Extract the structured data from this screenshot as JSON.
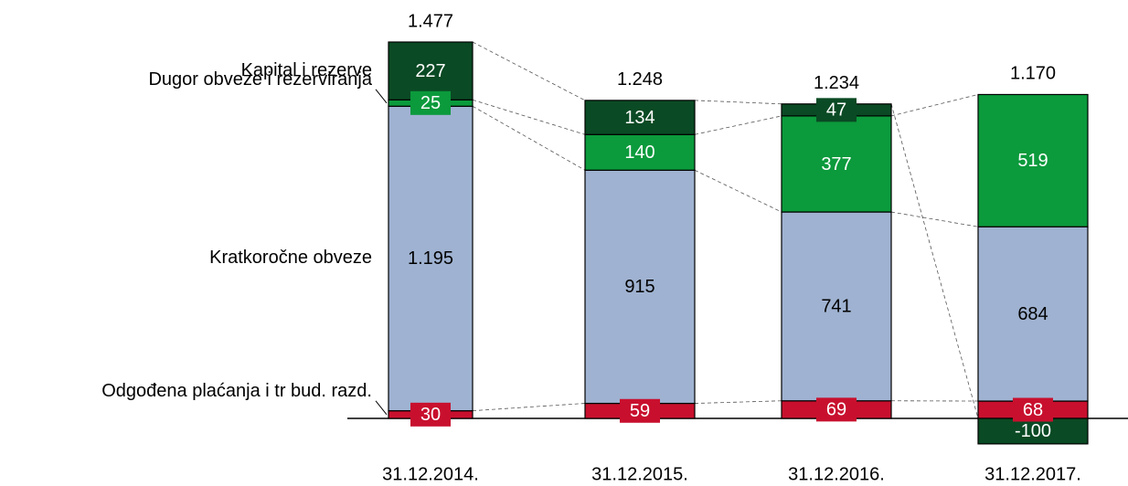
{
  "chart_data": {
    "type": "stacked-bar",
    "categories": [
      "31.12.2014.",
      "31.12.2015.",
      "31.12.2016.",
      "31.12.2017."
    ],
    "series": [
      {
        "name": "Odgođena plaćanja i tr bud. razd.",
        "color": "#c8102e",
        "label_color": "#ffffff",
        "values": [
          30,
          59,
          69,
          68
        ]
      },
      {
        "name": "Kratkoročne obveze",
        "color": "#9fb2d1",
        "label_color": "#000000",
        "values": [
          1195,
          915,
          741,
          684
        ],
        "value_labels": [
          "1.195",
          "915",
          "741",
          "684"
        ]
      },
      {
        "name": "Dugor obveze i rezerviranja",
        "color": "#0b9a3c",
        "label_color": "#ffffff",
        "values": [
          25,
          140,
          377,
          519
        ]
      },
      {
        "name": "Kapital i rezerve",
        "color": "#0a4a24",
        "label_color": "#ffffff",
        "values": [
          227,
          134,
          47,
          -100
        ]
      }
    ],
    "totals": {
      "values": [
        1477,
        1248,
        1234,
        1170
      ],
      "value_labels": [
        "1.477",
        "1.248",
        "1.234",
        "1.170"
      ]
    }
  }
}
